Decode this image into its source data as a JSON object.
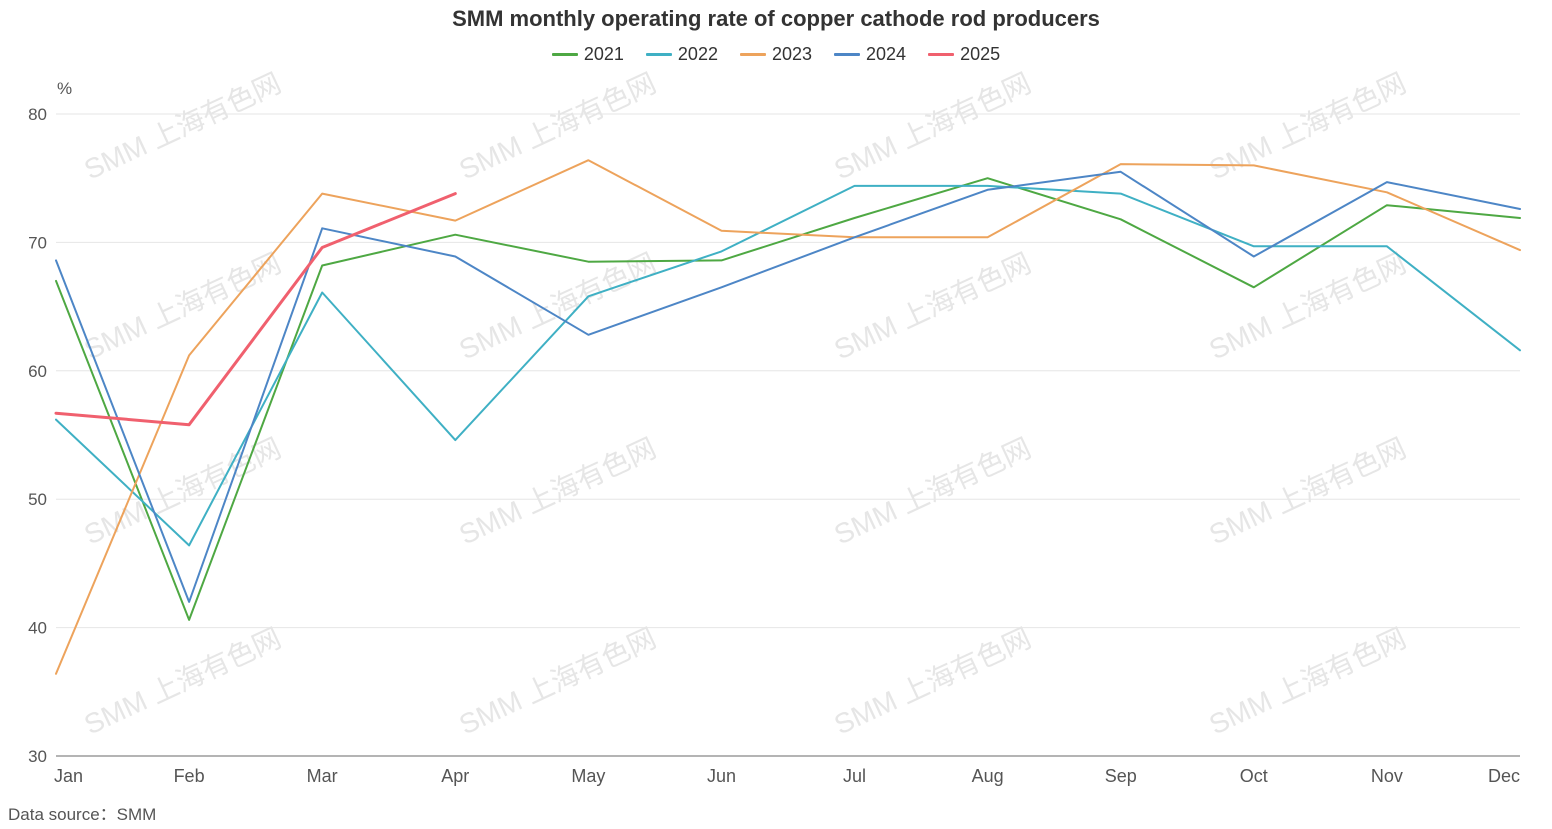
{
  "chart_data": {
    "type": "line",
    "title": "SMM monthly operating rate of copper cathode rod producers",
    "ylabel": "%",
    "xlabel": "",
    "ylim": [
      30,
      80
    ],
    "yticks": [
      30,
      40,
      50,
      60,
      70,
      80
    ],
    "grid": true,
    "legend_position": "top",
    "categories": [
      "Jan",
      "Feb",
      "Mar",
      "Apr",
      "May",
      "Jun",
      "Jul",
      "Aug",
      "Sep",
      "Oct",
      "Nov",
      "Dec"
    ],
    "series": [
      {
        "name": "2021",
        "color": "#4ea843",
        "values": [
          67.0,
          40.6,
          68.2,
          70.6,
          68.5,
          68.6,
          71.9,
          75.0,
          71.8,
          66.5,
          72.9,
          71.9
        ]
      },
      {
        "name": "2022",
        "color": "#3fb0c4",
        "values": [
          56.2,
          46.4,
          66.1,
          54.6,
          65.8,
          69.3,
          74.4,
          74.4,
          73.8,
          69.7,
          69.7,
          61.6
        ]
      },
      {
        "name": "2023",
        "color": "#eda35c",
        "values": [
          36.4,
          61.2,
          73.8,
          71.7,
          76.4,
          70.9,
          70.4,
          70.4,
          76.1,
          76.0,
          73.9,
          69.4
        ]
      },
      {
        "name": "2024",
        "color": "#4d86c6",
        "values": [
          68.6,
          42.0,
          71.1,
          68.9,
          62.8,
          66.5,
          70.4,
          74.1,
          75.5,
          68.9,
          74.7,
          72.6
        ]
      },
      {
        "name": "2025",
        "color": "#f0606e",
        "values": [
          56.7,
          55.8,
          69.6,
          73.8,
          null,
          null,
          null,
          null,
          null,
          null,
          null,
          null
        ]
      }
    ],
    "watermark": "SMM 上海有色网"
  },
  "footer": {
    "source": "Data source：SMM"
  }
}
